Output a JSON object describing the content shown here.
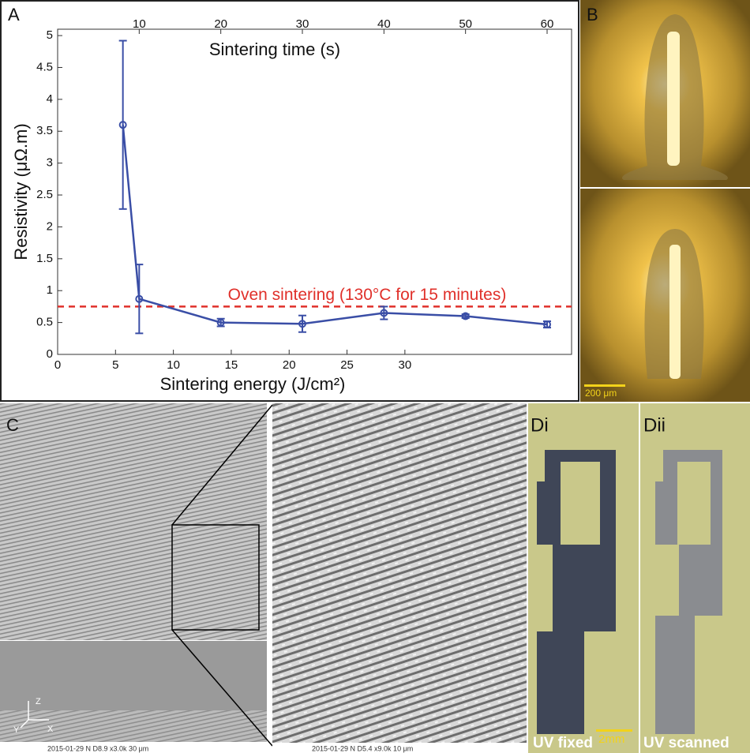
{
  "chart_data": {
    "type": "line",
    "panel_label": "A",
    "xlabel": "Sintering time (s)",
    "x2label": "Sintering energy (J/cm²)",
    "ylabel": "Resistivity (μΩ.m)",
    "x": [
      8,
      10,
      20,
      30,
      40,
      50,
      60
    ],
    "values": [
      3.6,
      0.87,
      0.5,
      0.48,
      0.65,
      0.6,
      0.47
    ],
    "errors": [
      1.32,
      0.54,
      0.06,
      0.13,
      0.1,
      0.03,
      0.05
    ],
    "color": "#3a4ea6",
    "xlim": [
      0,
      63
    ],
    "xticks": [
      10,
      20,
      30,
      40,
      50,
      60
    ],
    "x2lim": [
      0,
      44.4
    ],
    "x2ticks": [
      0,
      5,
      10,
      15,
      20,
      25,
      30
    ],
    "ylim": [
      0,
      5.1
    ],
    "yticks": [
      0,
      0.5,
      1,
      1.5,
      2,
      2.5,
      3,
      3.5,
      4,
      4.5,
      5
    ],
    "reference": {
      "value": 0.75,
      "label": "Oven sintering (130°C for 15 minutes)",
      "color": "#e0302a"
    }
  },
  "panels": {
    "b": {
      "label": "B",
      "scale_bar": "200 μm"
    },
    "c": {
      "label": "C",
      "axes": [
        "Z",
        "Y",
        "X"
      ],
      "footer_left": "2015-01-29       N     D8.9   x3.0k      30 μm",
      "footer_right": "2015-01-29       N     D5.4   x9.0k      10 μm"
    },
    "d": {
      "label_left": "Di",
      "label_right": "Dii",
      "caption_left": "UV fixed",
      "caption_right": "UV scanned",
      "scale_bar": "2mm"
    }
  }
}
